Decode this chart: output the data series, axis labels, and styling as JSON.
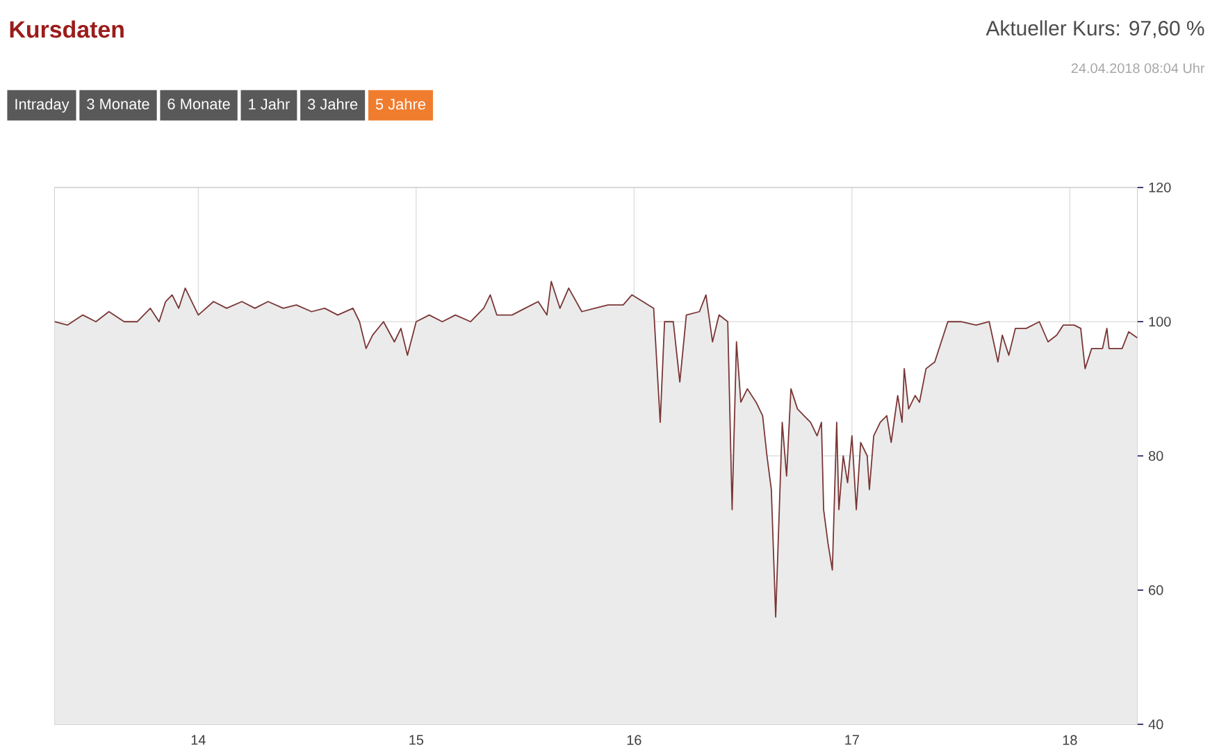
{
  "chart_data": {
    "type": "area",
    "title": "Kursdaten",
    "subtitle": "Aktueller Kurs: 97,60 %",
    "annotations": [
      "24.04.2018 08:04 Uhr",
      "Intraday",
      "3 Monate",
      "6 Monate",
      "1 Jahr",
      "3 Jahre",
      "5 Jahre"
    ],
    "x": [
      13.34,
      13.4,
      13.47,
      13.53,
      13.59,
      13.66,
      13.72,
      13.78,
      13.82,
      13.85,
      13.88,
      13.91,
      13.94,
      14.0,
      14.07,
      14.13,
      14.2,
      14.26,
      14.32,
      14.39,
      14.45,
      14.52,
      14.58,
      14.64,
      14.71,
      14.74,
      14.77,
      14.8,
      14.85,
      14.9,
      14.93,
      14.96,
      15.0,
      15.06,
      15.12,
      15.18,
      15.25,
      15.31,
      15.34,
      15.37,
      15.44,
      15.5,
      15.56,
      15.6,
      15.62,
      15.66,
      15.7,
      15.76,
      15.82,
      15.88,
      15.95,
      15.99,
      16.04,
      16.09,
      16.12,
      16.14,
      16.18,
      16.21,
      16.24,
      16.3,
      16.33,
      16.36,
      16.39,
      16.43,
      16.45,
      16.47,
      16.49,
      16.52,
      16.56,
      16.59,
      16.61,
      16.63,
      16.65,
      16.68,
      16.7,
      16.72,
      16.75,
      16.78,
      16.81,
      16.84,
      16.86,
      16.87,
      16.89,
      16.91,
      16.93,
      16.94,
      16.96,
      16.98,
      17.0,
      17.02,
      17.04,
      17.07,
      17.08,
      17.1,
      17.13,
      17.16,
      17.18,
      17.21,
      17.23,
      17.24,
      17.26,
      17.29,
      17.31,
      17.34,
      17.38,
      17.41,
      17.44,
      17.5,
      17.57,
      17.63,
      17.67,
      17.69,
      17.72,
      17.75,
      17.8,
      17.86,
      17.9,
      17.94,
      17.97,
      18.02,
      18.05,
      18.07,
      18.1,
      18.15,
      18.17,
      18.18,
      18.24,
      18.27,
      18.31
    ],
    "series": [
      {
        "color": "#7a3535",
        "values": [
          100,
          99.5,
          101,
          100,
          101.5,
          100,
          100,
          102,
          100,
          103,
          104,
          102,
          105,
          101,
          103,
          102,
          103,
          102,
          103,
          102,
          102.5,
          101.5,
          102,
          101,
          102,
          100,
          96,
          98,
          100,
          97,
          99,
          95,
          100,
          101,
          100,
          101,
          100,
          102,
          104,
          101,
          101,
          102,
          103,
          101,
          106,
          102,
          105,
          101.5,
          102,
          102.5,
          102.5,
          104,
          103,
          102,
          85,
          100,
          100,
          91,
          101,
          101.5,
          104,
          97,
          101,
          100,
          72,
          97,
          88,
          90,
          88,
          86,
          80,
          75,
          56,
          85,
          77,
          90,
          87,
          86,
          85,
          83,
          85,
          72,
          67,
          63,
          85,
          72,
          80,
          76,
          83,
          72,
          82,
          80,
          75,
          83,
          85,
          86,
          82,
          89,
          85,
          93,
          87,
          89,
          88,
          93,
          94,
          97,
          100,
          100,
          99.5,
          100,
          94,
          98,
          95,
          99,
          99,
          100,
          97,
          98,
          99.5,
          99.5,
          99,
          93,
          96,
          96,
          99,
          96,
          96,
          98.5,
          97.6
        ]
      }
    ],
    "xlim": [
      13.34,
      18.31
    ],
    "ylim": [
      40,
      120
    ],
    "xticks": [
      14,
      15,
      16,
      17,
      18
    ],
    "yticks": [
      40,
      60,
      80,
      100,
      120
    ],
    "grid": true
  }
}
